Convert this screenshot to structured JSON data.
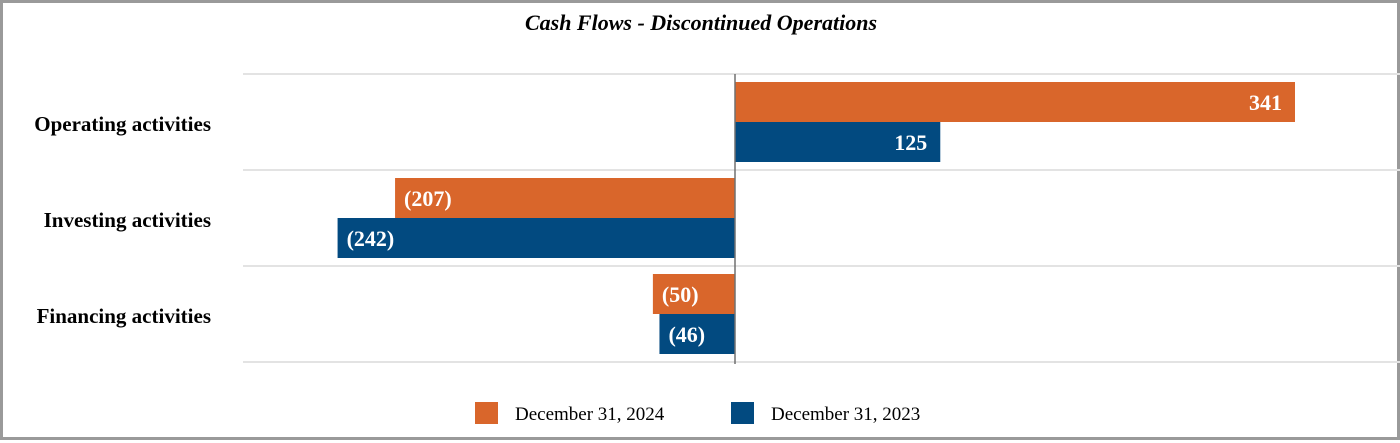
{
  "chart_data": {
    "type": "bar",
    "orientation": "horizontal",
    "title": "Cash Flows - Discontinued Operations",
    "categories": [
      "Operating activities",
      "Investing activities",
      "Financing activities"
    ],
    "series": [
      {
        "name": "December 31, 2024",
        "color": "#D9662B",
        "values": [
          341,
          -207,
          -50
        ],
        "labels": [
          "341",
          "(207)",
          "(50)"
        ]
      },
      {
        "name": "December 31, 2023",
        "color": "#024A80",
        "values": [
          125,
          -242,
          -46
        ],
        "labels": [
          "125",
          "(242)",
          "(46)"
        ]
      }
    ],
    "xlim": [
      -300,
      400
    ],
    "grid": true,
    "legend_position": "bottom"
  }
}
